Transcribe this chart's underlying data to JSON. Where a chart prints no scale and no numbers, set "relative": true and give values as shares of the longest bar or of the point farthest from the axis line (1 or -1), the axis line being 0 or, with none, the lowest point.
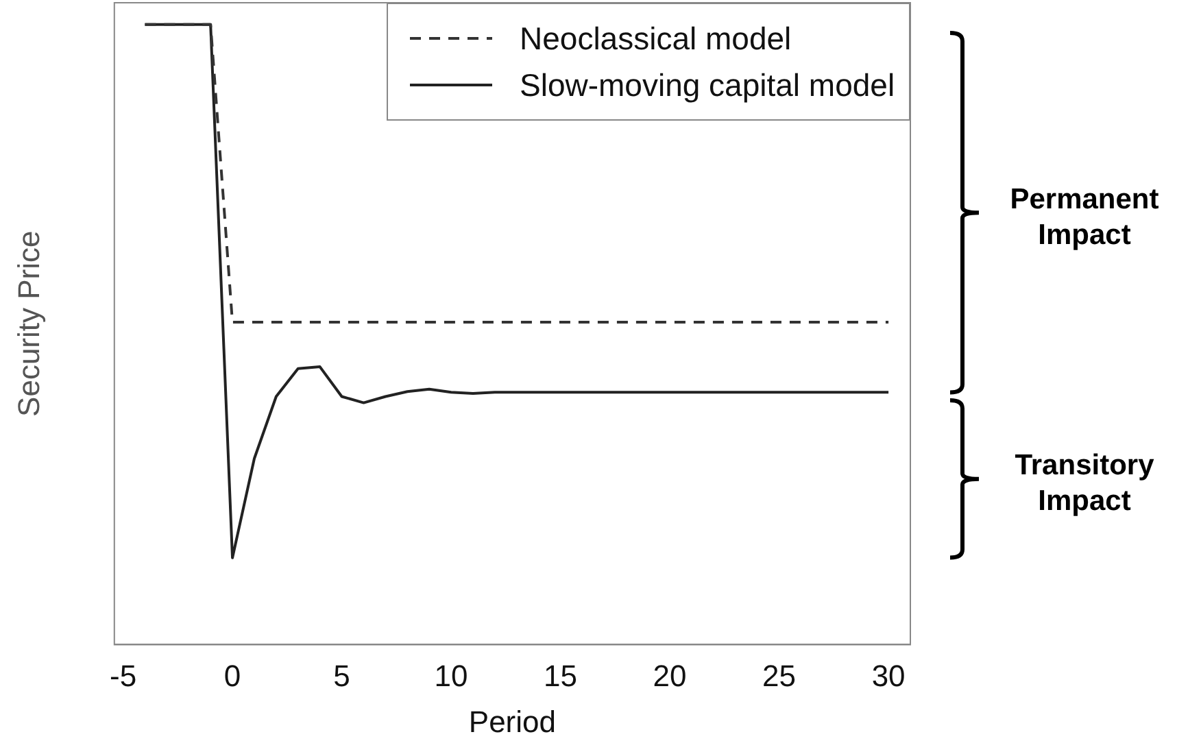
{
  "chart_data": {
    "type": "line",
    "xlabel": "Period",
    "ylabel": "Security Price",
    "relative": true,
    "x": [
      -4,
      -3,
      -2,
      -1,
      0,
      1,
      2,
      3,
      4,
      5,
      6,
      7,
      8,
      9,
      10,
      11,
      12,
      13,
      14,
      15,
      16,
      17,
      18,
      19,
      20,
      21,
      22,
      23,
      24,
      25,
      26,
      27,
      28,
      29,
      30
    ],
    "series": [
      {
        "name": "Neoclassical model",
        "color": "#333333",
        "line_style": "dashed",
        "values": [
          1,
          1,
          1,
          1,
          0.52,
          0.52,
          0.52,
          0.52,
          0.52,
          0.52,
          0.52,
          0.52,
          0.52,
          0.52,
          0.52,
          0.52,
          0.52,
          0.52,
          0.52,
          0.52,
          0.52,
          0.52,
          0.52,
          0.52,
          0.52,
          0.52,
          0.52,
          0.52,
          0.52,
          0.52,
          0.52,
          0.52,
          0.52,
          0.52,
          0.52
        ]
      },
      {
        "name": "Slow-moving capital model",
        "color": "#222222",
        "line_style": "solid",
        "values": [
          1,
          1,
          1,
          1,
          0.14,
          0.3,
          0.4,
          0.445,
          0.448,
          0.4,
          0.39,
          0.4,
          0.408,
          0.412,
          0.407,
          0.405,
          0.407,
          0.407,
          0.407,
          0.407,
          0.407,
          0.407,
          0.407,
          0.407,
          0.407,
          0.407,
          0.407,
          0.407,
          0.407,
          0.407,
          0.407,
          0.407,
          0.407,
          0.407,
          0.407
        ]
      }
    ],
    "xlim": [
      -5.4,
      31
    ],
    "xticks": [
      -5,
      0,
      5,
      10,
      15,
      20,
      25,
      30
    ],
    "annotations": [
      "Permanent Impact",
      "Transitory Impact"
    ],
    "legend": "top right",
    "grid": false,
    "marker": "none",
    "tick_labels": "x"
  }
}
